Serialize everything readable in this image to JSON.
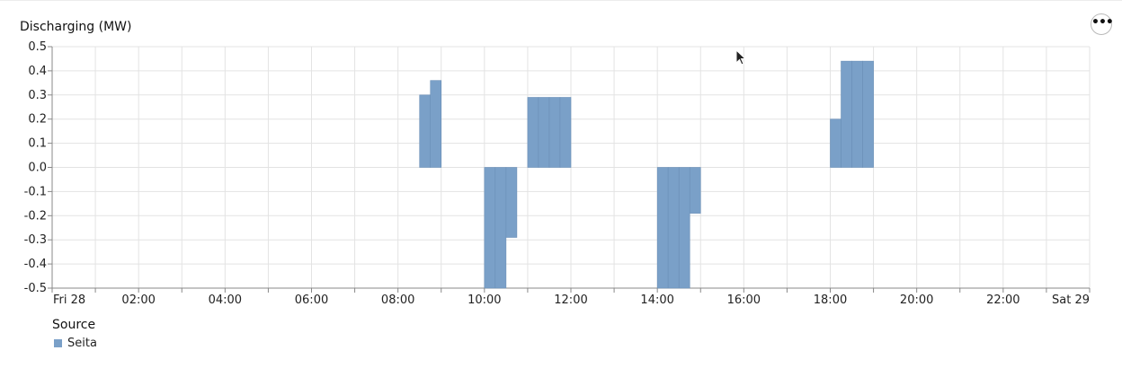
{
  "chart_data": {
    "type": "bar",
    "title": "Discharging (MW)",
    "ylim": [
      -0.5,
      0.5
    ],
    "yticks": [
      "0.5",
      "0.4",
      "0.3",
      "0.2",
      "0.1",
      "0.0",
      "-0.1",
      "-0.2",
      "-0.3",
      "-0.4",
      "-0.5"
    ],
    "ytick_values": [
      0.5,
      0.4,
      0.3,
      0.2,
      0.1,
      0.0,
      -0.1,
      -0.2,
      -0.3,
      -0.4,
      -0.5
    ],
    "xlim_hours": [
      0,
      24
    ],
    "xticks": [
      "Fri 28",
      "02:00",
      "04:00",
      "06:00",
      "08:00",
      "10:00",
      "12:00",
      "14:00",
      "16:00",
      "18:00",
      "20:00",
      "22:00",
      "Sat 29"
    ],
    "xtick_hours": [
      0,
      2,
      4,
      6,
      8,
      10,
      12,
      14,
      16,
      18,
      20,
      22,
      24
    ],
    "bar_width_hours": 0.25,
    "grid": true,
    "series": [
      {
        "name": "Seita",
        "color": "#7aa0c8",
        "points": [
          {
            "t": 8.5,
            "v": 0.3
          },
          {
            "t": 8.75,
            "v": 0.36
          },
          {
            "t": 10.0,
            "v": -0.5
          },
          {
            "t": 10.25,
            "v": -0.5
          },
          {
            "t": 10.5,
            "v": -0.29
          },
          {
            "t": 11.0,
            "v": 0.29
          },
          {
            "t": 11.25,
            "v": 0.29
          },
          {
            "t": 11.5,
            "v": 0.29
          },
          {
            "t": 11.75,
            "v": 0.29
          },
          {
            "t": 14.0,
            "v": -0.5
          },
          {
            "t": 14.25,
            "v": -0.5
          },
          {
            "t": 14.5,
            "v": -0.5
          },
          {
            "t": 14.75,
            "v": -0.19
          },
          {
            "t": 18.0,
            "v": 0.2
          },
          {
            "t": 18.25,
            "v": 0.44
          },
          {
            "t": 18.5,
            "v": 0.44
          },
          {
            "t": 18.75,
            "v": 0.44
          }
        ]
      }
    ],
    "legend": {
      "title": "Source",
      "placement": "bottom-left"
    }
  },
  "menu_button_label": "•••",
  "icons": {
    "menu": "more-horizontal-icon",
    "cursor": "mouse-pointer-icon"
  }
}
